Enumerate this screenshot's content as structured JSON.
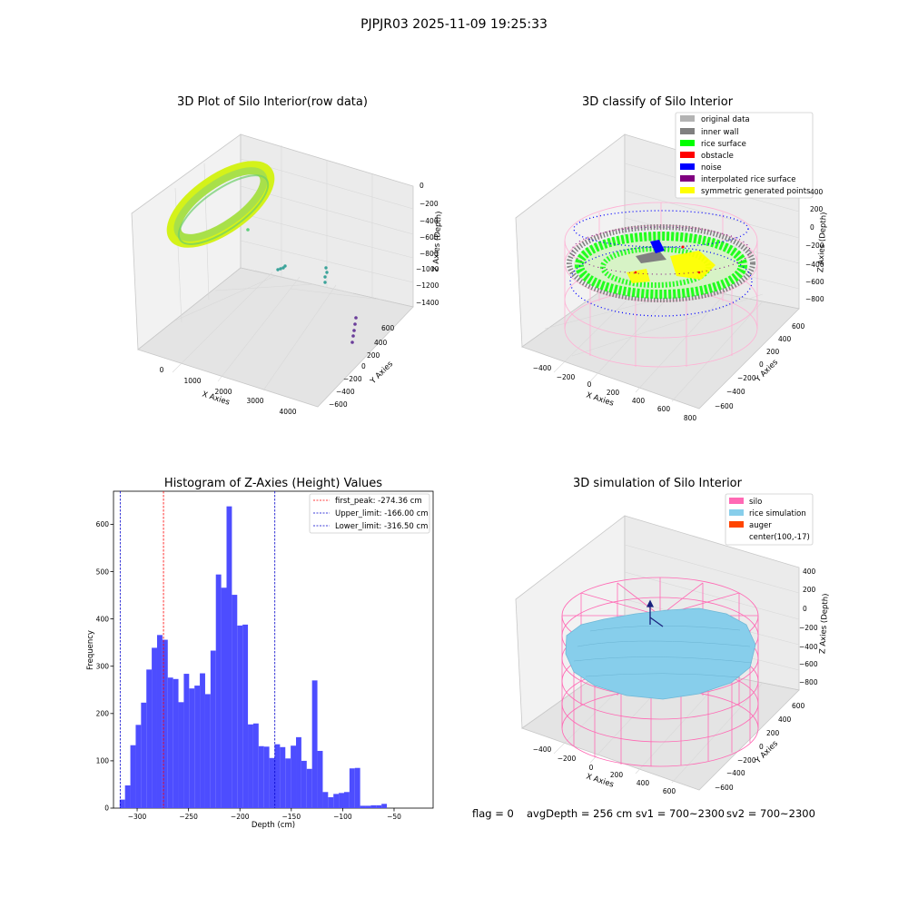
{
  "figure": {
    "suptitle": "PJPJR03 2025-11-09 19:25:33",
    "footer": {
      "flag": "flag = 0",
      "avg_depth": "avgDepth = 256 cm",
      "sv1": "sv1 = 700~2300",
      "sv2": "sv2 = 700~2300"
    }
  },
  "colors": {
    "hist_bar": "#4d4dff",
    "first_peak_line": "#ff0000",
    "limit_line": "#0000cc",
    "pane": "#f2f2f2",
    "grid": "#d8d8d8",
    "raw_surface": "#a8e04a",
    "raw_outline": "#d4f21a",
    "original_data": "#b3b3b3",
    "inner_wall": "#808080",
    "rice_surface": "#00ff00",
    "obstacle": "#ff0000",
    "noise": "#0000ff",
    "interpolated_rice_surface": "#800080",
    "symmetric_generated_points": "#ffff00",
    "silo": "#ff69b4",
    "rice_simulation": "#87ceeb",
    "auger": "#ff4500"
  },
  "panels": {
    "raw": {
      "title": "3D Plot of Silo Interior(row data)",
      "xlabel": "X Axies",
      "ylabel": "Y Axies",
      "zlabel": "Z Axies (Depth)",
      "xticks": [
        "0",
        "1000",
        "2000",
        "3000",
        "4000"
      ],
      "yticks": [
        "600",
        "400",
        "200",
        "0",
        "−200",
        "−400",
        "−600"
      ],
      "zticks": [
        "0",
        "−200",
        "−400",
        "−600",
        "−800",
        "−1000",
        "−1200",
        "−1400"
      ]
    },
    "classify": {
      "title": "3D classify of Silo Interior",
      "xlabel": "X Axies",
      "ylabel": "Y Axies",
      "zlabel": "Z Axies (Depth)",
      "xticks": [
        "−400",
        "−200",
        "0",
        "200",
        "400",
        "600",
        "800"
      ],
      "yticks": [
        "600",
        "400",
        "200",
        "0",
        "−200",
        "−400",
        "−600"
      ],
      "zticks": [
        "400",
        "200",
        "0",
        "−200",
        "−400",
        "−600",
        "−800"
      ],
      "legend": [
        {
          "label": "original data",
          "color": "#b3b3b3"
        },
        {
          "label": "inner wall",
          "color": "#808080"
        },
        {
          "label": "rice surface",
          "color": "#00ff00"
        },
        {
          "label": "obstacle",
          "color": "#ff0000"
        },
        {
          "label": "noise",
          "color": "#0000ff"
        },
        {
          "label": "interpolated rice surface",
          "color": "#800080"
        },
        {
          "label": "symmetric generated points",
          "color": "#ffff00"
        }
      ]
    },
    "simulation": {
      "title": "3D simulation of Silo Interior",
      "xlabel": "X Axies",
      "ylabel": "Y Axies",
      "zlabel": "Z Axies (Depth)",
      "xticks": [
        "−400",
        "−200",
        "0",
        "200",
        "400",
        "600"
      ],
      "yticks": [
        "600",
        "400",
        "200",
        "0",
        "−200",
        "−400",
        "−600"
      ],
      "zticks": [
        "400",
        "200",
        "0",
        "−200",
        "−400",
        "−600",
        "−800"
      ],
      "legend": [
        {
          "label": "silo",
          "color": "#ff69b4"
        },
        {
          "label": "rice simulation",
          "color": "#87ceeb"
        },
        {
          "label": "auger",
          "color": "#ff4500"
        },
        {
          "label": "center(100,-17)",
          "color": ""
        }
      ]
    }
  },
  "chart_data": {
    "type": "bar",
    "title": "Histogram of Z-Axies (Height) Values",
    "xlabel": "Depth (cm)",
    "ylabel": "Frequency",
    "xlim": [
      -323,
      -12
    ],
    "ylim": [
      0,
      670
    ],
    "xticks": [
      -300,
      -250,
      -200,
      -150,
      -100,
      -50
    ],
    "yticks": [
      0,
      100,
      200,
      300,
      400,
      500,
      600
    ],
    "bins": {
      "start": -317,
      "width": 5.2,
      "values": [
        18,
        48,
        133,
        176,
        223,
        293,
        339,
        366,
        356,
        276,
        273,
        224,
        284,
        253,
        259,
        285,
        241,
        333,
        494,
        466,
        638,
        451,
        386,
        388,
        177,
        179,
        131,
        130,
        106,
        135,
        129,
        105,
        132,
        150,
        100,
        83,
        270,
        121,
        34,
        23,
        30,
        32,
        34,
        84,
        85,
        5,
        5,
        6,
        6,
        9
      ]
    },
    "vlines": [
      {
        "label": "first_peak: -274.36 cm",
        "x": -274.36,
        "color": "#ff0000"
      },
      {
        "label": "Upper_limit: -166.00 cm",
        "x": -166.0,
        "color": "#0000cc"
      },
      {
        "label": "Lower_limit: -316.50 cm",
        "x": -316.5,
        "color": "#0000cc"
      }
    ],
    "legend_loc": "upper right"
  }
}
